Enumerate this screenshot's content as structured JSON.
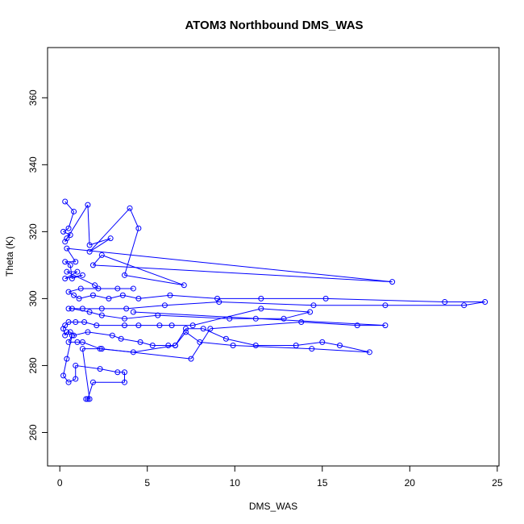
{
  "chart_data": {
    "type": "line",
    "title": "ATOM3 Northbound DMS_WAS",
    "xlabel": "DMS_WAS",
    "ylabel": "Theta (K)",
    "xlim": [
      -0.7,
      25.1
    ],
    "ylim": [
      250,
      375
    ],
    "xticks": [
      0,
      5,
      10,
      15,
      20,
      25
    ],
    "yticks": [
      260,
      280,
      300,
      320,
      340,
      360
    ],
    "series": [
      {
        "color": "#0000ff",
        "marker": "open-circle",
        "points": [
          [
            0.3,
            329
          ],
          [
            0.8,
            326
          ],
          [
            0.5,
            321
          ],
          [
            0.2,
            320
          ],
          [
            0.6,
            319
          ],
          [
            0.4,
            318
          ],
          [
            0.3,
            317
          ],
          [
            1.6,
            328
          ],
          [
            1.7,
            316
          ],
          [
            2.9,
            318
          ],
          [
            1.7,
            314
          ],
          [
            4.0,
            327
          ],
          [
            4.5,
            321
          ],
          [
            3.7,
            307
          ],
          [
            7.1,
            304
          ],
          [
            2.4,
            313
          ],
          [
            1.9,
            310
          ],
          [
            19.0,
            305
          ],
          [
            0.4,
            315
          ],
          [
            0.9,
            311
          ],
          [
            0.3,
            311
          ],
          [
            0.6,
            310
          ],
          [
            0.7,
            306
          ],
          [
            1.3,
            307
          ],
          [
            0.3,
            306
          ],
          [
            1.0,
            308
          ],
          [
            0.4,
            308
          ],
          [
            2.0,
            304
          ],
          [
            2.2,
            303
          ],
          [
            4.2,
            303
          ],
          [
            3.3,
            303
          ],
          [
            1.2,
            303
          ],
          [
            0.5,
            302
          ],
          [
            0.8,
            301
          ],
          [
            1.1,
            300
          ],
          [
            1.9,
            301
          ],
          [
            2.8,
            300
          ],
          [
            3.6,
            301
          ],
          [
            4.5,
            300
          ],
          [
            6.3,
            301
          ],
          [
            9.0,
            300
          ],
          [
            11.5,
            300
          ],
          [
            15.2,
            300
          ],
          [
            22.0,
            299
          ],
          [
            24.3,
            299
          ],
          [
            23.1,
            298
          ],
          [
            18.6,
            298
          ],
          [
            14.5,
            298
          ],
          [
            9.1,
            299
          ],
          [
            6.0,
            298
          ],
          [
            3.8,
            297
          ],
          [
            2.4,
            297
          ],
          [
            1.3,
            297
          ],
          [
            0.5,
            297
          ],
          [
            0.7,
            297
          ],
          [
            1.7,
            296
          ],
          [
            2.4,
            295
          ],
          [
            3.7,
            294
          ],
          [
            5.6,
            295
          ],
          [
            9.7,
            294
          ],
          [
            11.2,
            294
          ],
          [
            12.8,
            294
          ],
          [
            14.3,
            296
          ],
          [
            11.5,
            297
          ],
          [
            7.6,
            292
          ],
          [
            6.4,
            292
          ],
          [
            5.7,
            292
          ],
          [
            4.5,
            292
          ],
          [
            3.7,
            292
          ],
          [
            2.1,
            292
          ],
          [
            1.4,
            293
          ],
          [
            0.9,
            293
          ],
          [
            0.5,
            293
          ],
          [
            0.3,
            292
          ],
          [
            0.2,
            291
          ],
          [
            0.3,
            289
          ],
          [
            0.4,
            290
          ],
          [
            0.6,
            290
          ],
          [
            0.8,
            289
          ],
          [
            1.6,
            290
          ],
          [
            3.0,
            289
          ],
          [
            3.5,
            288
          ],
          [
            4.6,
            287
          ],
          [
            5.3,
            286
          ],
          [
            6.2,
            286
          ],
          [
            6.6,
            286
          ],
          [
            7.2,
            291
          ],
          [
            8.2,
            291
          ],
          [
            9.5,
            288
          ],
          [
            11.2,
            286
          ],
          [
            13.5,
            286
          ],
          [
            15.0,
            287
          ],
          [
            16.0,
            286
          ],
          [
            17.7,
            284
          ],
          [
            14.4,
            285
          ],
          [
            9.9,
            286
          ],
          [
            8.0,
            287
          ],
          [
            7.2,
            290
          ],
          [
            6.6,
            286
          ],
          [
            4.2,
            284
          ],
          [
            2.3,
            285
          ],
          [
            1.3,
            287
          ],
          [
            1.0,
            287
          ],
          [
            0.5,
            287
          ],
          [
            0.7,
            289
          ],
          [
            0.4,
            282
          ],
          [
            0.2,
            277
          ],
          [
            0.5,
            275
          ],
          [
            0.9,
            276
          ],
          [
            0.9,
            280
          ],
          [
            2.3,
            279
          ],
          [
            3.3,
            278
          ],
          [
            3.7,
            278
          ],
          [
            3.7,
            275
          ],
          [
            1.9,
            275
          ],
          [
            1.6,
            270
          ],
          [
            1.5,
            270
          ],
          [
            1.7,
            270
          ],
          [
            1.3,
            285
          ],
          [
            2.4,
            285
          ],
          [
            7.5,
            282
          ],
          [
            8.6,
            291
          ],
          [
            13.8,
            293
          ],
          [
            17.0,
            292
          ],
          [
            18.6,
            292
          ],
          [
            4.2,
            296
          ]
        ]
      }
    ]
  }
}
